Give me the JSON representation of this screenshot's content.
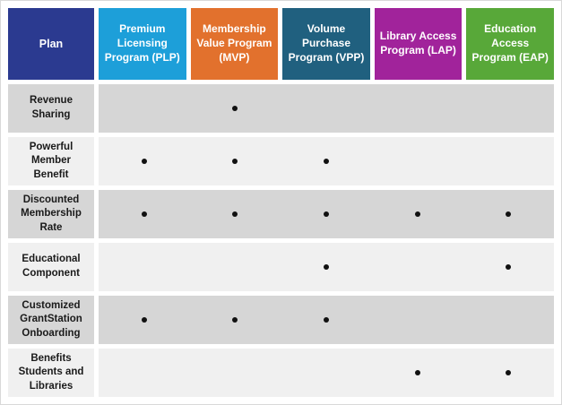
{
  "colors": {
    "background": "#ffffff",
    "frame_border": "#d9d9d9",
    "plan_header_bg": "#2b3a90",
    "header_text": "#ffffff",
    "column_colors": [
      "#1d9fd9",
      "#e2712d",
      "#20607f",
      "#a1239b",
      "#58a839"
    ],
    "row_band_dark": "#d6d6d6",
    "row_band_light": "#f0f0f0",
    "label_text": "#1a1a1a",
    "dot_color": "#111111"
  },
  "chart_data": {
    "type": "table",
    "title": "",
    "corner_label": "Plan",
    "columns": [
      "Premium Licensing Program (PLP)",
      "Membership Value Program (MVP)",
      "Volume Purchase Program (VPP)",
      "Library Access Program (LAP)",
      "Education Access Program (EAP)"
    ],
    "rows": [
      "Revenue Sharing",
      "Powerful Member Benefit",
      "Discounted Membership Rate",
      "Educational Component",
      "Customized GrantStation Onboarding",
      "Benefits Students and Libraries"
    ],
    "matrix": [
      [
        false,
        true,
        false,
        false,
        false
      ],
      [
        true,
        true,
        true,
        false,
        false
      ],
      [
        true,
        true,
        true,
        true,
        true
      ],
      [
        false,
        false,
        true,
        false,
        true
      ],
      [
        true,
        true,
        true,
        false,
        false
      ],
      [
        false,
        false,
        false,
        true,
        true
      ]
    ]
  }
}
